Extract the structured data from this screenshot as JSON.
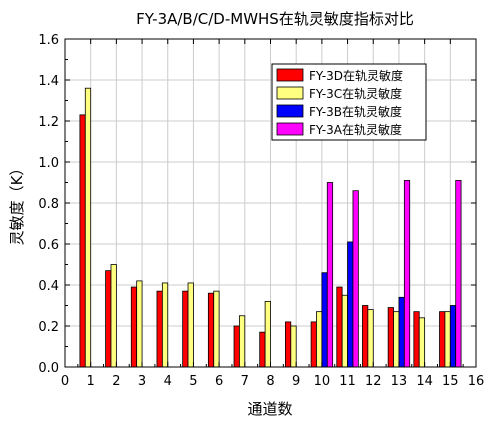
{
  "chart_data": {
    "type": "bar",
    "title": "FY-3A/B/C/D-MWHS在轨灵敏度指标对比",
    "xlabel": "通道数",
    "ylabel": "灵敏度（K）",
    "xlim": [
      0,
      16
    ],
    "ylim": [
      0.0,
      1.6
    ],
    "x_ticks": [
      "0",
      "1",
      "2",
      "3",
      "4",
      "5",
      "6",
      "7",
      "8",
      "9",
      "10",
      "11",
      "12",
      "13",
      "14",
      "15",
      "16"
    ],
    "y_ticks": [
      "0.0",
      "0.2",
      "0.4",
      "0.6",
      "0.8",
      "1.0",
      "1.2",
      "1.4",
      "1.6"
    ],
    "grid": true,
    "legend_position": "top-right",
    "channels": [
      1,
      2,
      3,
      4,
      5,
      6,
      7,
      8,
      9,
      10,
      11,
      12,
      13,
      14,
      15
    ],
    "series": [
      {
        "name": "FY-3D在轨灵敏度",
        "color": "#ff0000",
        "values": [
          1.23,
          0.47,
          0.39,
          0.37,
          0.37,
          0.36,
          0.2,
          0.17,
          0.22,
          0.22,
          0.39,
          0.3,
          0.29,
          0.27,
          0.27
        ]
      },
      {
        "name": "FY-3C在轨灵敏度",
        "color": "#ffff80",
        "values": [
          1.36,
          0.5,
          0.42,
          0.41,
          0.41,
          0.37,
          0.25,
          0.32,
          0.2,
          0.27,
          0.35,
          0.28,
          0.27,
          0.24,
          0.27
        ]
      },
      {
        "name": "FY-3B在轨灵敏度",
        "color": "#0000ff",
        "values": [
          null,
          null,
          null,
          null,
          null,
          null,
          null,
          null,
          null,
          0.46,
          0.61,
          null,
          0.34,
          null,
          0.3
        ]
      },
      {
        "name": "FY-3A在轨灵敏度",
        "color": "#ff00ff",
        "values": [
          null,
          null,
          null,
          null,
          null,
          null,
          null,
          null,
          null,
          0.9,
          0.86,
          null,
          0.91,
          null,
          0.91
        ]
      }
    ]
  }
}
